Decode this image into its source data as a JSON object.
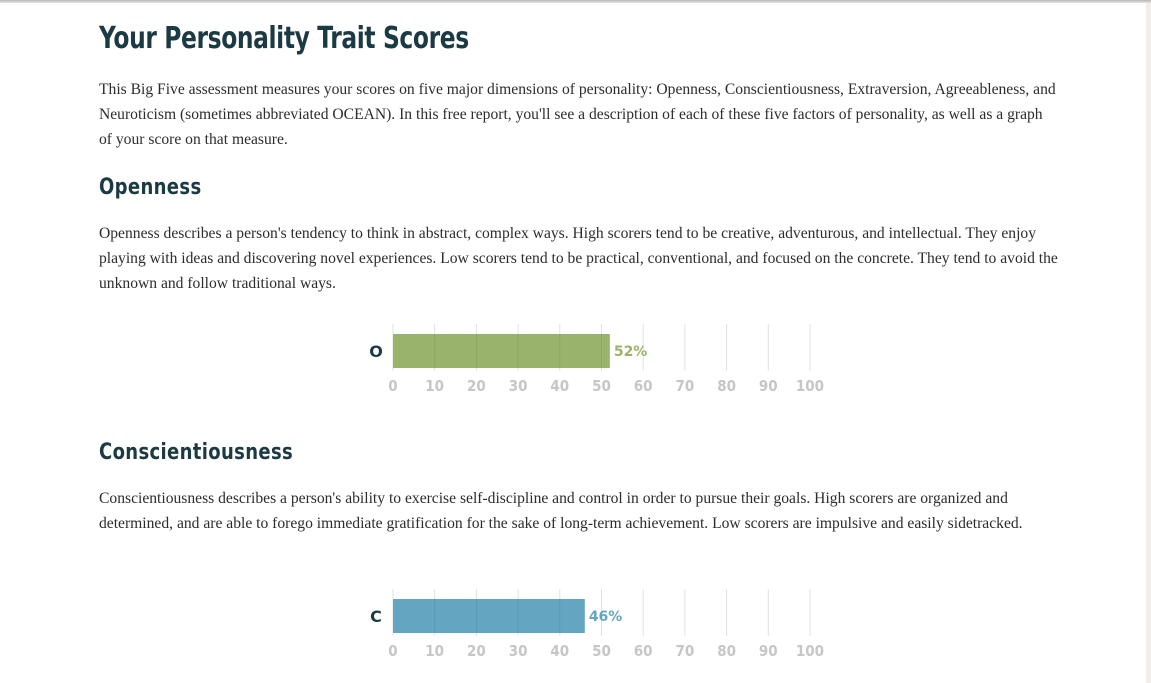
{
  "page": {
    "title": "Your Personality Trait Scores",
    "intro": "This Big Five assessment measures your scores on five major dimensions of personality: Openness, Conscientiousness, Extraversion, Agreeableness, and Neuroticism (sometimes abbreviated OCEAN). In this free report, you'll see a description of each of these five factors of personality, as well as a graph of your score on that measure."
  },
  "traits": [
    {
      "heading": "Openness",
      "description": "Openness describes a person's tendency to think in abstract, complex ways. High scorers tend to be creative, adventurous, and intellectual. They enjoy playing with ideas and discovering novel experiences. Low scorers tend to be practical, conventional, and focused on the concrete. They tend to avoid the unknown and follow traditional ways.",
      "letter": "O",
      "score_label": "52%"
    },
    {
      "heading": "Conscientiousness",
      "description": "Conscientiousness describes a person's ability to exercise self-discipline and control in order to pursue their goals. High scorers are organized and determined, and are able to forego immediate gratification for the sake of long-term achievement. Low scorers are impulsive and easily sidetracked.",
      "letter": "C",
      "score_label": "46%"
    }
  ],
  "chart_data": [
    {
      "type": "bar",
      "categories": [
        "O"
      ],
      "values": [
        52
      ],
      "xlim": [
        0,
        100
      ],
      "xticks": [
        0,
        10,
        20,
        30,
        40,
        50,
        60,
        70,
        80,
        90,
        100
      ],
      "data_labels": [
        "52%"
      ],
      "grid": true,
      "color": "#9ab36a"
    },
    {
      "type": "bar",
      "categories": [
        "C"
      ],
      "values": [
        46
      ],
      "xlim": [
        0,
        100
      ],
      "xticks": [
        0,
        10,
        20,
        30,
        40,
        50,
        60,
        70,
        80,
        90,
        100
      ],
      "data_labels": [
        "46%"
      ],
      "grid": true,
      "color": "#64a5c1"
    }
  ]
}
